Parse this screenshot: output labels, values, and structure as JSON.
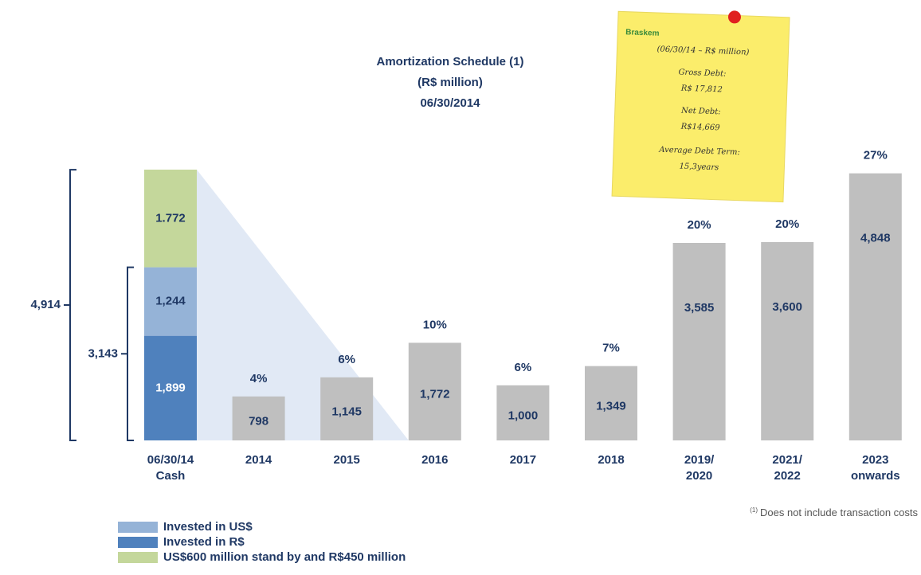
{
  "chart_data": {
    "type": "bar",
    "title": "Amortization Schedule (1)",
    "subtitle": "(R$ million)",
    "date": "06/30/2014",
    "categories": [
      "06/30/14\nCash",
      "2014",
      "2015",
      "2016",
      "2017",
      "2018",
      "2019/\n2020",
      "2021/\n2022",
      "2023\nonwards"
    ],
    "series": [
      {
        "name": "Invested in US$",
        "color": "#95b3d7",
        "values": [
          1244,
          null,
          null,
          null,
          null,
          null,
          null,
          null,
          null
        ],
        "value_labels": [
          "1,244",
          null,
          null,
          null,
          null,
          null,
          null,
          null,
          null
        ]
      },
      {
        "name": "Invested in R$",
        "color": "#4f81bd",
        "values": [
          1899,
          null,
          null,
          null,
          null,
          null,
          null,
          null,
          null
        ],
        "value_labels": [
          "1,899",
          null,
          null,
          null,
          null,
          null,
          null,
          null,
          null
        ]
      },
      {
        "name": "US$600 million stand by and R$450 million",
        "color": "#c4d79b",
        "values": [
          1772,
          null,
          null,
          null,
          null,
          null,
          null,
          null,
          null
        ],
        "value_labels": [
          "1.772",
          null,
          null,
          null,
          null,
          null,
          null,
          null,
          null
        ]
      }
    ],
    "amortization": {
      "color": "#bfbfbf",
      "values": [
        null,
        798,
        1145,
        1772,
        1000,
        1349,
        3585,
        3600,
        4848
      ],
      "value_labels": [
        null,
        "798",
        "1,145",
        "1,772",
        "1,000",
        "1,349",
        "3,585",
        "3,600",
        "4,848"
      ],
      "shares": [
        null,
        4,
        6,
        10,
        6,
        7,
        20,
        20,
        27
      ],
      "share_labels": [
        null,
        "4%",
        "6%",
        "10%",
        "6%",
        "7%",
        "20%",
        "20%",
        "27%"
      ]
    },
    "brackets": [
      {
        "value": 4914,
        "label": "4,914"
      },
      {
        "value": 3143,
        "label": "3,143"
      }
    ],
    "note": {
      "brand": "Braskem",
      "lines": [
        "(06/30/14 – R$ million)",
        "Gross Debt:",
        "R$ 17,812",
        "Net Debt:",
        "R$14,669",
        "Average Debt Term:",
        "15,3years"
      ]
    },
    "footnote_mark": "(1)",
    "footnote": "Does not include transaction costs"
  }
}
